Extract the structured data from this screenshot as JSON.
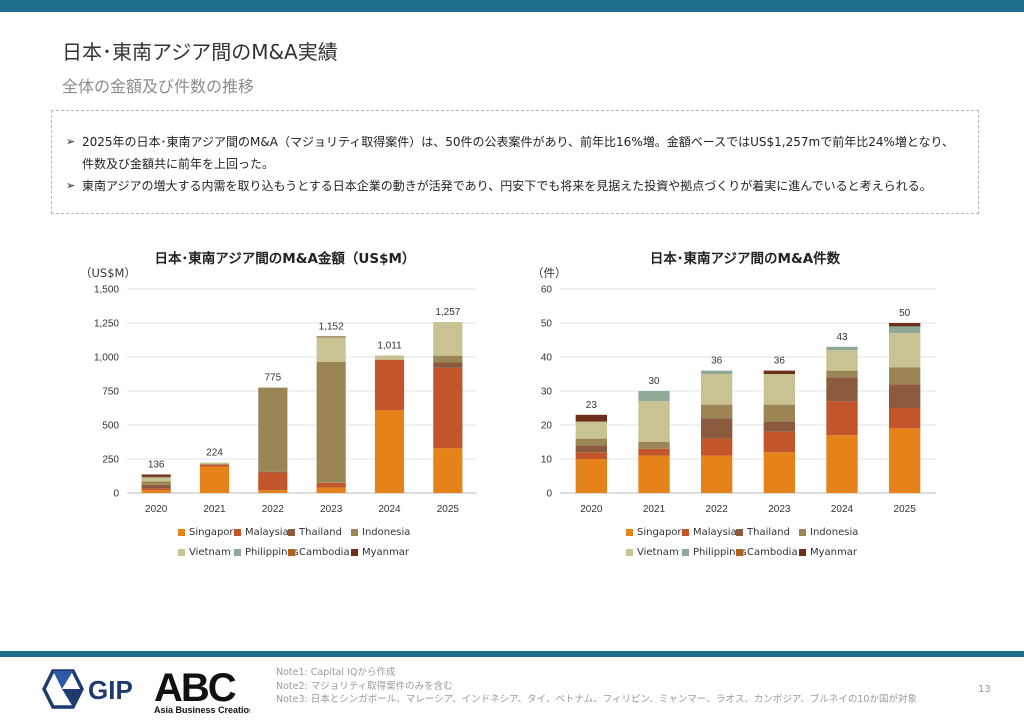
{
  "title": "日本･東南アジア間のM&A実績",
  "subtitle": "全体の金額及び件数の推移",
  "summary": {
    "bullet1": "2025年の日本･東南アジア間のM&A（マジョリティ取得案件）は、50件の公表案件があり、前年比16%増。金額ベースではUS$1,257mで前年比24%増となり、件数及び金額共に前年を上回った。",
    "bullet2": "東南アジアの増大する内需を取り込もうとする日本企業の動きが活発であり、円安下でも将来を見据えた投資や拠点づくりが着実に進んでいると考えられる。"
  },
  "colors": {
    "Singapore": "#e5831a",
    "Malaysia": "#c2562a",
    "Thailand": "#8c5a3e",
    "Indonesia": "#9b8555",
    "Vietnam": "#c9c393",
    "Philippines": "#8fa898",
    "Cambodia": "#b0651a",
    "Myanmar": "#6e2f1a"
  },
  "chart_data": [
    {
      "type": "bar",
      "stacked": true,
      "title": "日本･東南アジア間のM&A金額（US$M）",
      "unit_label": "（US$M）",
      "categories": [
        "2020",
        "2021",
        "2022",
        "2023",
        "2024",
        "2025"
      ],
      "ylim": [
        0,
        1500
      ],
      "yticks": [
        "0",
        "250",
        "500",
        "750",
        "1,000",
        "1,250",
        "1,500"
      ],
      "totals": [
        "136",
        "224",
        "775",
        "1,152",
        "1,011",
        "1,257"
      ],
      "series": [
        {
          "name": "Singapore",
          "values": [
            20,
            195,
            20,
            40,
            610,
            330
          ]
        },
        {
          "name": "Malaysia",
          "values": [
            15,
            12,
            130,
            35,
            370,
            590
          ]
        },
        {
          "name": "Thailand",
          "values": [
            25,
            5,
            5,
            0,
            0,
            40
          ]
        },
        {
          "name": "Indonesia",
          "values": [
            25,
            0,
            620,
            890,
            0,
            50
          ]
        },
        {
          "name": "Vietnam",
          "values": [
            25,
            12,
            0,
            175,
            31,
            247
          ]
        },
        {
          "name": "Philippines",
          "values": [
            5,
            0,
            0,
            5,
            0,
            0
          ]
        },
        {
          "name": "Cambodia",
          "values": [
            5,
            0,
            0,
            5,
            0,
            0
          ]
        },
        {
          "name": "Myanmar",
          "values": [
            16,
            0,
            0,
            2,
            0,
            0
          ]
        }
      ],
      "legend": [
        "Singapore",
        "Malaysia",
        "Thailand",
        "Indonesia",
        "Vietnam",
        "Philippines",
        "Cambodia",
        "Myanmar"
      ]
    },
    {
      "type": "bar",
      "stacked": true,
      "title": "日本･東南アジア間のM&A件数",
      "unit_label": "（件）",
      "categories": [
        "2020",
        "2021",
        "2022",
        "2023",
        "2024",
        "2025"
      ],
      "ylim": [
        0,
        60
      ],
      "yticks": [
        "0",
        "10",
        "20",
        "30",
        "40",
        "50",
        "60"
      ],
      "totals": [
        "23",
        "30",
        "36",
        "36",
        "43",
        "50"
      ],
      "series": [
        {
          "name": "Singapore",
          "values": [
            10,
            11,
            11,
            12,
            17,
            19
          ]
        },
        {
          "name": "Malaysia",
          "values": [
            2,
            2,
            5,
            6,
            10,
            6
          ]
        },
        {
          "name": "Thailand",
          "values": [
            2,
            0,
            6,
            3,
            7,
            7
          ]
        },
        {
          "name": "Indonesia",
          "values": [
            2,
            2,
            4,
            5,
            2,
            5
          ]
        },
        {
          "name": "Vietnam",
          "values": [
            5,
            12,
            9,
            9,
            6,
            10
          ]
        },
        {
          "name": "Philippines",
          "values": [
            0,
            3,
            1,
            0,
            1,
            2
          ]
        },
        {
          "name": "Cambodia",
          "values": [
            0,
            0,
            0,
            0,
            0,
            0
          ]
        },
        {
          "name": "Myanmar",
          "values": [
            2,
            0,
            0,
            1,
            0,
            1
          ]
        }
      ],
      "legend": [
        "Singapore",
        "Malaysia",
        "Thailand",
        "Indonesia",
        "Vietnam",
        "Philippines",
        "Cambodia",
        "Myanmar"
      ]
    }
  ],
  "logos": {
    "gip": "GIP",
    "abc": "ABC",
    "abc_tagline": "Asia Business Creation"
  },
  "notes": [
    "Note1: Capital IQから作成",
    "Note2: マジョリティ取得案件のみを含む",
    "Note3: 日本とシンガポール、マレーシア、インドネシア、タイ、ベトナム、フィリピン、ミャンマー、ラオス、カンボジア、ブルネイの10か国が対象"
  ],
  "page_number": "13"
}
